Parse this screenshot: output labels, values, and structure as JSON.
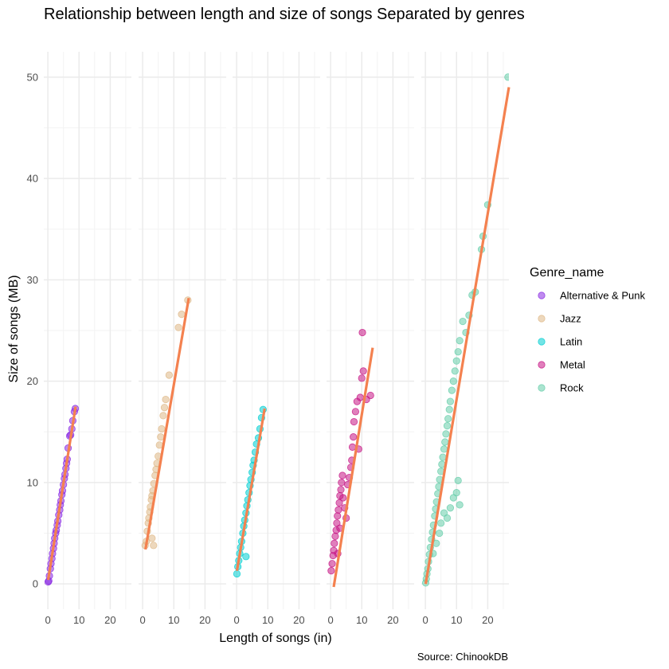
{
  "chart_data": {
    "type": "scatter",
    "title": "Relationship between length and size of songs Separated by genres",
    "xlabel": "Length of songs (in)",
    "ylabel": "Size of songs (MB)",
    "caption": "Source: ChinookDB",
    "xlim": [
      -1.3,
      26.8
    ],
    "ylim": [
      -2.5,
      52.5
    ],
    "x_ticks": [
      0,
      10,
      20
    ],
    "x_tick_labels": [
      "0",
      "10",
      "20"
    ],
    "y_ticks": [
      0,
      10,
      20,
      30,
      40,
      50
    ],
    "y_tick_labels": [
      "0",
      "10",
      "20",
      "30",
      "40",
      "50"
    ],
    "grid": true,
    "legend": {
      "title": "Genre_name",
      "position": "right",
      "entries": [
        "Alternative & Punk",
        "Jazz",
        "Latin",
        "Metal",
        "Rock"
      ]
    },
    "facets": [
      {
        "label": "Alternative & Punk",
        "color": "#8a2be2",
        "points": [
          [
            0.1,
            0.2
          ],
          [
            0.3,
            0.3
          ],
          [
            0.5,
            0.8
          ],
          [
            0.8,
            1.5
          ],
          [
            1.0,
            2.0
          ],
          [
            1.3,
            2.5
          ],
          [
            1.5,
            3.0
          ],
          [
            1.8,
            3.5
          ],
          [
            2.0,
            4.0
          ],
          [
            2.2,
            4.5
          ],
          [
            2.5,
            5.0
          ],
          [
            2.7,
            5.3
          ],
          [
            3.0,
            5.8
          ],
          [
            3.2,
            6.2
          ],
          [
            3.5,
            6.8
          ],
          [
            3.8,
            7.3
          ],
          [
            4.0,
            7.8
          ],
          [
            4.2,
            8.2
          ],
          [
            4.5,
            8.8
          ],
          [
            4.7,
            9.2
          ],
          [
            5.0,
            9.8
          ],
          [
            5.3,
            10.4
          ],
          [
            5.5,
            10.8
          ],
          [
            5.8,
            11.4
          ],
          [
            6.0,
            11.9
          ],
          [
            6.2,
            12.3
          ],
          [
            6.5,
            13.4
          ],
          [
            7.0,
            14.6
          ],
          [
            7.3,
            14.7
          ],
          [
            7.7,
            15.3
          ],
          [
            8.0,
            16.1
          ],
          [
            8.5,
            17.0
          ],
          [
            8.8,
            17.3
          ]
        ],
        "fit": [
          [
            0.1,
            0.4
          ],
          [
            8.9,
            17.5
          ]
        ]
      },
      {
        "label": "Jazz",
        "color": "#deb887",
        "points": [
          [
            0.8,
            3.8
          ],
          [
            1.2,
            4.2
          ],
          [
            3.0,
            4.5
          ],
          [
            3.5,
            3.8
          ],
          [
            1.5,
            5.2
          ],
          [
            1.8,
            6.0
          ],
          [
            2.0,
            6.5
          ],
          [
            2.3,
            7.1
          ],
          [
            2.5,
            7.6
          ],
          [
            2.8,
            8.3
          ],
          [
            3.0,
            8.7
          ],
          [
            3.3,
            9.2
          ],
          [
            3.6,
            9.9
          ],
          [
            4.0,
            10.7
          ],
          [
            4.3,
            11.3
          ],
          [
            4.6,
            11.9
          ],
          [
            5.0,
            12.6
          ],
          [
            5.4,
            13.7
          ],
          [
            5.8,
            14.5
          ],
          [
            6.1,
            15.3
          ],
          [
            6.6,
            16.6
          ],
          [
            7.0,
            17.4
          ],
          [
            7.4,
            18.2
          ],
          [
            8.5,
            20.6
          ],
          [
            11.5,
            25.3
          ],
          [
            12.5,
            26.6
          ],
          [
            14.5,
            28.0
          ]
        ],
        "fit": [
          [
            0.9,
            3.4
          ],
          [
            14.8,
            28.2
          ]
        ]
      },
      {
        "label": "Latin",
        "color": "#00ced1",
        "points": [
          [
            0.1,
            1.0
          ],
          [
            0.4,
            1.7
          ],
          [
            0.7,
            2.3
          ],
          [
            1.0,
            3.0
          ],
          [
            1.3,
            3.6
          ],
          [
            1.6,
            4.2
          ],
          [
            2.0,
            5.0
          ],
          [
            2.3,
            5.7
          ],
          [
            2.6,
            6.3
          ],
          [
            3.0,
            7.0
          ],
          [
            3.3,
            7.7
          ],
          [
            3.6,
            8.3
          ],
          [
            4.0,
            9.0
          ],
          [
            4.3,
            9.7
          ],
          [
            4.6,
            10.3
          ],
          [
            5.0,
            11.0
          ],
          [
            5.3,
            11.7
          ],
          [
            5.6,
            12.2
          ],
          [
            6.0,
            13.0
          ],
          [
            6.4,
            13.8
          ],
          [
            7.0,
            14.4
          ],
          [
            7.5,
            15.3
          ],
          [
            8.0,
            16.4
          ],
          [
            8.5,
            17.2
          ],
          [
            3.0,
            2.7
          ]
        ],
        "fit": [
          [
            0.1,
            1.3
          ],
          [
            9.0,
            17.3
          ]
        ]
      },
      {
        "label": "Metal",
        "color": "#c71585",
        "points": [
          [
            0.2,
            1.3
          ],
          [
            0.5,
            2.0
          ],
          [
            0.8,
            2.8
          ],
          [
            1.0,
            3.3
          ],
          [
            1.2,
            4.0
          ],
          [
            1.5,
            4.7
          ],
          [
            1.8,
            5.3
          ],
          [
            2.0,
            6.0
          ],
          [
            2.2,
            6.7
          ],
          [
            2.5,
            7.3
          ],
          [
            2.8,
            8.0
          ],
          [
            3.0,
            8.7
          ],
          [
            3.3,
            9.3
          ],
          [
            3.5,
            10.0
          ],
          [
            3.8,
            10.7
          ],
          [
            4.0,
            8.5
          ],
          [
            4.5,
            7.5
          ],
          [
            5.0,
            6.5
          ],
          [
            5.5,
            9.8
          ],
          [
            6.0,
            10.5
          ],
          [
            6.5,
            11.5
          ],
          [
            6.8,
            12.2
          ],
          [
            7.0,
            13.5
          ],
          [
            7.3,
            14.5
          ],
          [
            7.5,
            16.0
          ],
          [
            8.0,
            17.0
          ],
          [
            8.5,
            18.0
          ],
          [
            9.0,
            13.3
          ],
          [
            9.5,
            18.4
          ],
          [
            10.0,
            20.3
          ],
          [
            10.5,
            21.0
          ],
          [
            11.5,
            18.2
          ],
          [
            12.8,
            18.6
          ],
          [
            10.2,
            24.8
          ],
          [
            3.0,
            5.5
          ],
          [
            2.3,
            3.0
          ]
        ],
        "fit": [
          [
            1.0,
            -0.3
          ],
          [
            13.5,
            23.3
          ]
        ]
      },
      {
        "label": "Rock",
        "color": "#66cdaa",
        "points": [
          [
            0.1,
            0.1
          ],
          [
            0.3,
            0.5
          ],
          [
            0.5,
            1.0
          ],
          [
            0.8,
            1.5
          ],
          [
            1.0,
            2.2
          ],
          [
            1.3,
            2.9
          ],
          [
            1.6,
            3.6
          ],
          [
            2.0,
            4.4
          ],
          [
            2.3,
            5.1
          ],
          [
            2.6,
            5.8
          ],
          [
            3.0,
            6.7
          ],
          [
            3.3,
            7.4
          ],
          [
            3.6,
            8.1
          ],
          [
            4.0,
            8.9
          ],
          [
            4.3,
            9.6
          ],
          [
            4.6,
            10.3
          ],
          [
            5.0,
            11.1
          ],
          [
            5.3,
            11.8
          ],
          [
            5.6,
            12.5
          ],
          [
            6.0,
            13.3
          ],
          [
            6.3,
            14.0
          ],
          [
            6.6,
            14.8
          ],
          [
            7.0,
            15.6
          ],
          [
            7.3,
            16.3
          ],
          [
            7.7,
            17.2
          ],
          [
            8.0,
            18.0
          ],
          [
            8.5,
            19.1
          ],
          [
            9.0,
            20.0
          ],
          [
            9.5,
            21.0
          ],
          [
            10.0,
            22.0
          ],
          [
            10.5,
            22.9
          ],
          [
            11.0,
            24.0
          ],
          [
            12.0,
            25.9
          ],
          [
            13.0,
            24.8
          ],
          [
            14.0,
            26.5
          ],
          [
            15.0,
            28.5
          ],
          [
            16.0,
            28.8
          ],
          [
            18.0,
            33.0
          ],
          [
            18.5,
            34.3
          ],
          [
            20.0,
            37.4
          ],
          [
            26.5,
            50.0
          ],
          [
            5.0,
            6.0
          ],
          [
            6.0,
            7.0
          ],
          [
            7.0,
            6.5
          ],
          [
            8.0,
            7.5
          ],
          [
            9.0,
            8.5
          ],
          [
            10.0,
            9.0
          ],
          [
            11.0,
            7.8
          ],
          [
            10.5,
            10.2
          ],
          [
            4.5,
            5.0
          ],
          [
            3.5,
            4.0
          ],
          [
            2.5,
            3.0
          ]
        ],
        "fit": [
          [
            0.1,
            0.0
          ],
          [
            26.8,
            49.0
          ]
        ]
      }
    ]
  }
}
